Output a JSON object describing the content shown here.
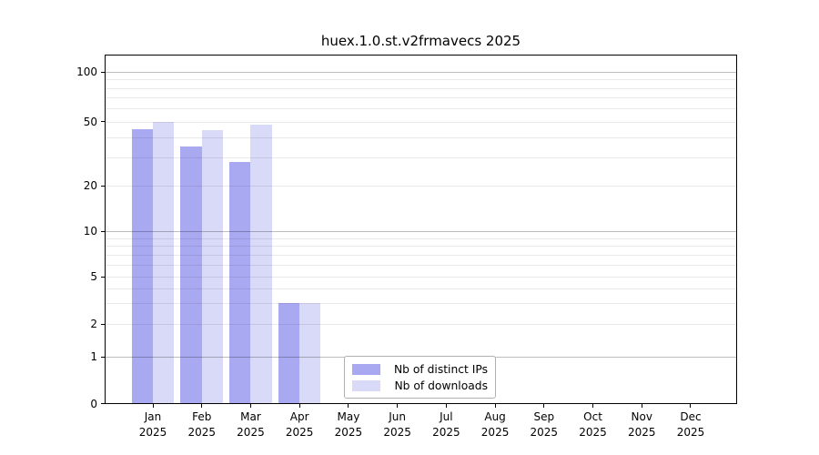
{
  "page": {
    "background": "#ffffff"
  },
  "chart_data": {
    "type": "bar",
    "title": "huex.1.0.st.v2frmavecs 2025",
    "categories": [
      "Jan",
      "Feb",
      "Mar",
      "Apr",
      "May",
      "Jun",
      "Jul",
      "Aug",
      "Sep",
      "Oct",
      "Nov",
      "Dec"
    ],
    "x_tick_year": "2025",
    "series": [
      {
        "name": "Nb of distinct IPs",
        "color": "#a9a9f1",
        "values": [
          45,
          35,
          28,
          3,
          null,
          null,
          null,
          null,
          null,
          null,
          null,
          null
        ]
      },
      {
        "name": "Nb of downloads",
        "color": "#d9d9f8",
        "values": [
          50,
          44,
          48,
          3,
          null,
          null,
          null,
          null,
          null,
          null,
          null,
          null
        ]
      }
    ],
    "xlabel": "",
    "ylabel": "",
    "yscale": "symlog",
    "ylim": [
      0,
      127
    ],
    "yticks": [
      0,
      1,
      2,
      5,
      10,
      20,
      50,
      100
    ],
    "grid": {
      "orientation": "horizontal",
      "major_lines": [
        1,
        10,
        100
      ],
      "minor_lines": [
        2,
        3,
        4,
        5,
        6,
        7,
        8,
        9,
        20,
        30,
        40,
        50,
        60,
        70,
        80,
        90
      ]
    },
    "legend": {
      "position": "lower-center-inside",
      "entries": [
        "Nb of distinct IPs",
        "Nb of downloads"
      ]
    }
  }
}
